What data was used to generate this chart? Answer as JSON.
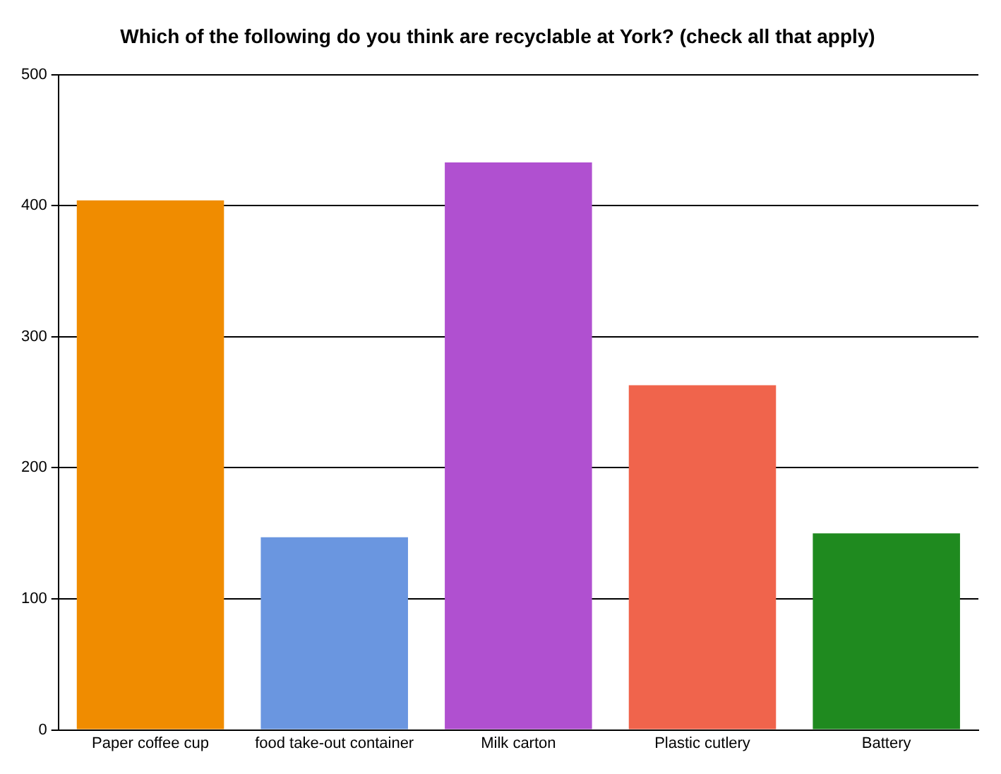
{
  "chart_data": {
    "type": "bar",
    "title": "Which of the following do you think are recyclable at York? (check all that apply)",
    "categories": [
      "Paper coffee cup",
      "food take-out container",
      "Milk carton",
      "Plastic cutlery",
      "Battery"
    ],
    "values": [
      404,
      147,
      433,
      263,
      150
    ],
    "colors": [
      "#f08c00",
      "#6a96e0",
      "#b050d0",
      "#f0644c",
      "#1f8a1f"
    ],
    "ylim": [
      0,
      500
    ],
    "yticks": [
      0,
      100,
      200,
      300,
      400,
      500
    ],
    "grid": "y"
  }
}
